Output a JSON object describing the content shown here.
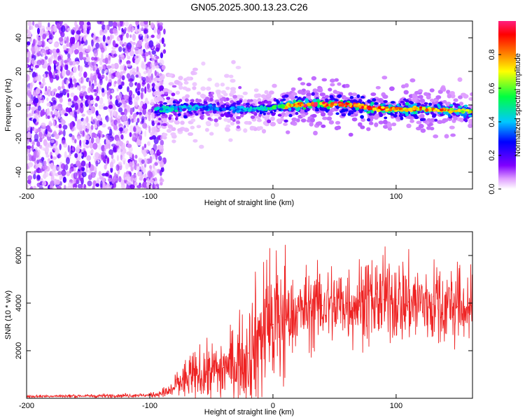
{
  "chart_data": [
    {
      "type": "heatmap",
      "title": "GN05.2025.300.13.23.C26",
      "xlabel": "Height of straight line (km)",
      "ylabel": "Frequency (Hz)",
      "xlim": [
        -200,
        162
      ],
      "ylim": [
        -50,
        50
      ],
      "xticks": [
        -200,
        -100,
        0,
        100
      ],
      "yticks": [
        -40,
        -20,
        0,
        20,
        40
      ],
      "colorbar": {
        "label": "Normalized spectral amplitude",
        "range": [
          0,
          1
        ],
        "ticks": [
          "0.0",
          "0.2",
          "0.4",
          "0.6",
          "0.8"
        ],
        "colormap": "rainbow (white→magenta→blue→cyan→green→yellow→red)"
      },
      "noise_region_km": [
        -200,
        -88
      ],
      "tone_track": {
        "height_km": [
          -95,
          -80,
          -60,
          -40,
          -20,
          0,
          20,
          40,
          60,
          80,
          100,
          120,
          140,
          162
        ],
        "frequency_hz": [
          -3,
          -2,
          -1.5,
          -2,
          -2.5,
          -1.5,
          0,
          0.5,
          0.5,
          -2,
          -2.5,
          -2.5,
          -3,
          -4
        ],
        "peak_amplitude": [
          0.45,
          0.45,
          0.4,
          0.35,
          0.4,
          0.55,
          0.9,
          0.95,
          0.95,
          0.9,
          0.85,
          0.85,
          0.8,
          0.7
        ]
      }
    },
    {
      "type": "line",
      "xlabel": "Height of straight line (km)",
      "ylabel": "SNR (10 * v/v)",
      "xlim": [
        -200,
        162
      ],
      "ylim": [
        0,
        7000
      ],
      "xticks": [
        -200,
        -100,
        0,
        100
      ],
      "yticks": [
        2000,
        4000,
        6000
      ],
      "series": [
        {
          "name": "SNR",
          "color": "#ee2222",
          "x": [
            -200,
            -150,
            -100,
            -85,
            -75,
            -60,
            -50,
            -40,
            -30,
            -20,
            -10,
            0,
            10,
            20,
            30,
            40,
            50,
            60,
            70,
            80,
            90,
            100,
            110,
            120,
            130,
            140,
            150,
            162
          ],
          "y": [
            80,
            100,
            130,
            250,
            700,
            1000,
            1100,
            1300,
            1500,
            1900,
            2700,
            3100,
            3300,
            3600,
            3800,
            3900,
            3950,
            4000,
            4050,
            4100,
            4150,
            4150,
            4050,
            4000,
            3950,
            3900,
            3850,
            3750
          ]
        }
      ]
    }
  ]
}
